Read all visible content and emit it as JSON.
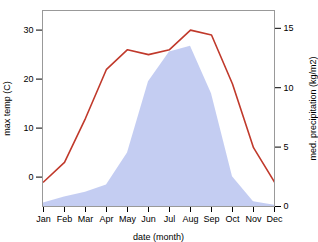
{
  "chart_data": {
    "type": "line",
    "xlabel": "date (month)",
    "ylabel": "max temp (C)",
    "y2label": "med. precipitation (kg/m2)",
    "categories": [
      "Jan",
      "Feb",
      "Mar",
      "Apr",
      "May",
      "Jun",
      "Jul",
      "Aug",
      "Sep",
      "Oct",
      "Nov",
      "Dec"
    ],
    "series": [
      {
        "type": "area",
        "axis": "y2",
        "color": "#b0bcee",
        "values": [
          0.3,
          0.8,
          1.2,
          1.8,
          4.5,
          10.5,
          13.0,
          13.5,
          9.5,
          2.5,
          0.4,
          0.1
        ]
      },
      {
        "type": "line",
        "color": "#c0392b",
        "values": [
          -1,
          3,
          12,
          22,
          26,
          25,
          26,
          30,
          29,
          19,
          6,
          -1
        ]
      }
    ],
    "ylim": [
      -6,
      34
    ],
    "yticks": [
      0,
      10,
      20,
      30
    ],
    "y2lim": [
      0,
      16.5
    ],
    "y2ticks": [
      0,
      5,
      10,
      15
    ]
  }
}
